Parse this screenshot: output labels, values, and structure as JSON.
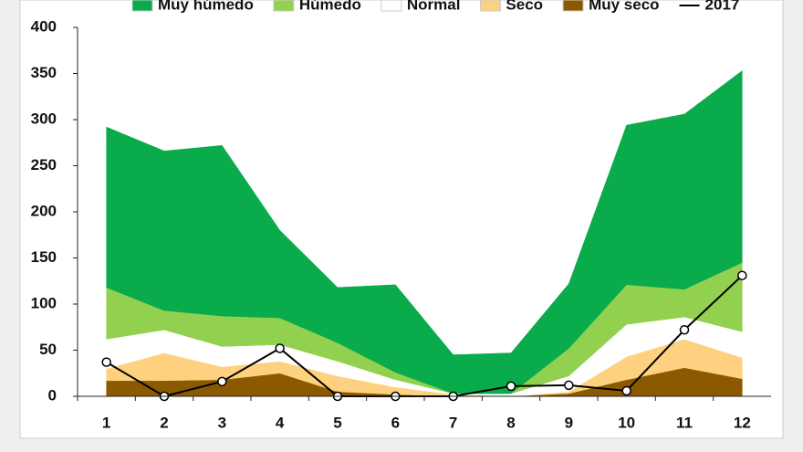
{
  "chart_data": {
    "type": "stacked-area-line",
    "categories": [
      1,
      2,
      3,
      4,
      5,
      6,
      7,
      8,
      9,
      10,
      11,
      12
    ],
    "series": [
      {
        "name": "Muy seco",
        "color": "#8b5a00",
        "values": [
          17,
          17,
          18,
          25,
          5,
          2,
          0,
          0,
          3,
          18,
          31,
          19
        ]
      },
      {
        "name": "Seco",
        "color": "#fdd17f",
        "values": [
          13,
          30,
          14,
          13,
          17,
          8,
          2,
          0,
          2,
          25,
          31,
          23
        ]
      },
      {
        "name": "Normal",
        "color": "#ffffff",
        "values": [
          32,
          25,
          22,
          18,
          16,
          8,
          1,
          3,
          17,
          35,
          24,
          28
        ]
      },
      {
        "name": "Húmedo",
        "color": "#92d050",
        "values": [
          56,
          21,
          33,
          29,
          20,
          8,
          0,
          0,
          30,
          43,
          30,
          75
        ]
      },
      {
        "name": "Muy húmedo",
        "color": "#0aab4a",
        "values": [
          174,
          173,
          185,
          95,
          60,
          95,
          42,
          44,
          70,
          173,
          190,
          208
        ]
      }
    ],
    "line": {
      "name": "2017",
      "color": "#000000",
      "values": [
        37,
        0,
        16,
        52,
        0,
        0,
        0,
        11,
        12,
        6,
        72,
        131
      ]
    },
    "ylim": [
      0,
      400
    ],
    "yticks": [
      0,
      50,
      100,
      150,
      200,
      250,
      300,
      350,
      400
    ],
    "grid": false
  }
}
